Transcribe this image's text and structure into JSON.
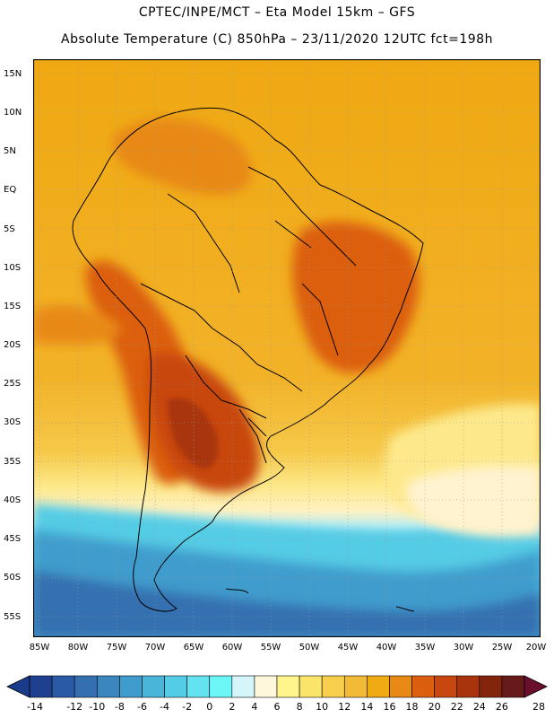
{
  "title": {
    "line1": "CPTEC/INPE/MCT –  Eta Model 15km – GFS",
    "line2": "Absolute Temperature (C) 850hPa – 23/11/2020 12UTC fct=198h"
  },
  "map": {
    "region": "South America",
    "variable": "Absolute Temperature (C) 850hPa",
    "lat_labels": [
      "15N",
      "10N",
      "5N",
      "EQ",
      "5S",
      "10S",
      "15S",
      "20S",
      "25S",
      "30S",
      "35S",
      "40S",
      "45S",
      "50S",
      "55S"
    ],
    "lon_labels": [
      "85W",
      "80W",
      "75W",
      "70W",
      "65W",
      "60W",
      "55W",
      "50W",
      "45W",
      "40W",
      "35W",
      "30W",
      "25W",
      "20W"
    ]
  },
  "colorbar": {
    "labels": [
      "-14",
      "-12",
      "-10",
      "-8",
      "-6",
      "-4",
      "-2",
      "0",
      "2",
      "4",
      "6",
      "8",
      "10",
      "12",
      "14",
      "16",
      "18",
      "20",
      "22",
      "24",
      "26",
      "28"
    ],
    "colors": [
      "#1f3f8f",
      "#2a5aa5",
      "#3470b0",
      "#3b86bf",
      "#3f9ccc",
      "#48b5d9",
      "#55cce5",
      "#62e3ef",
      "#6cf6f6",
      "#d4f6fb",
      "#fff7dc",
      "#fff58c",
      "#fbe46a",
      "#f8cf4d",
      "#f2bb37",
      "#f0aa12",
      "#e88915",
      "#dc5f10",
      "#c84610",
      "#a8340e",
      "#83240c",
      "#661a1a"
    ]
  }
}
